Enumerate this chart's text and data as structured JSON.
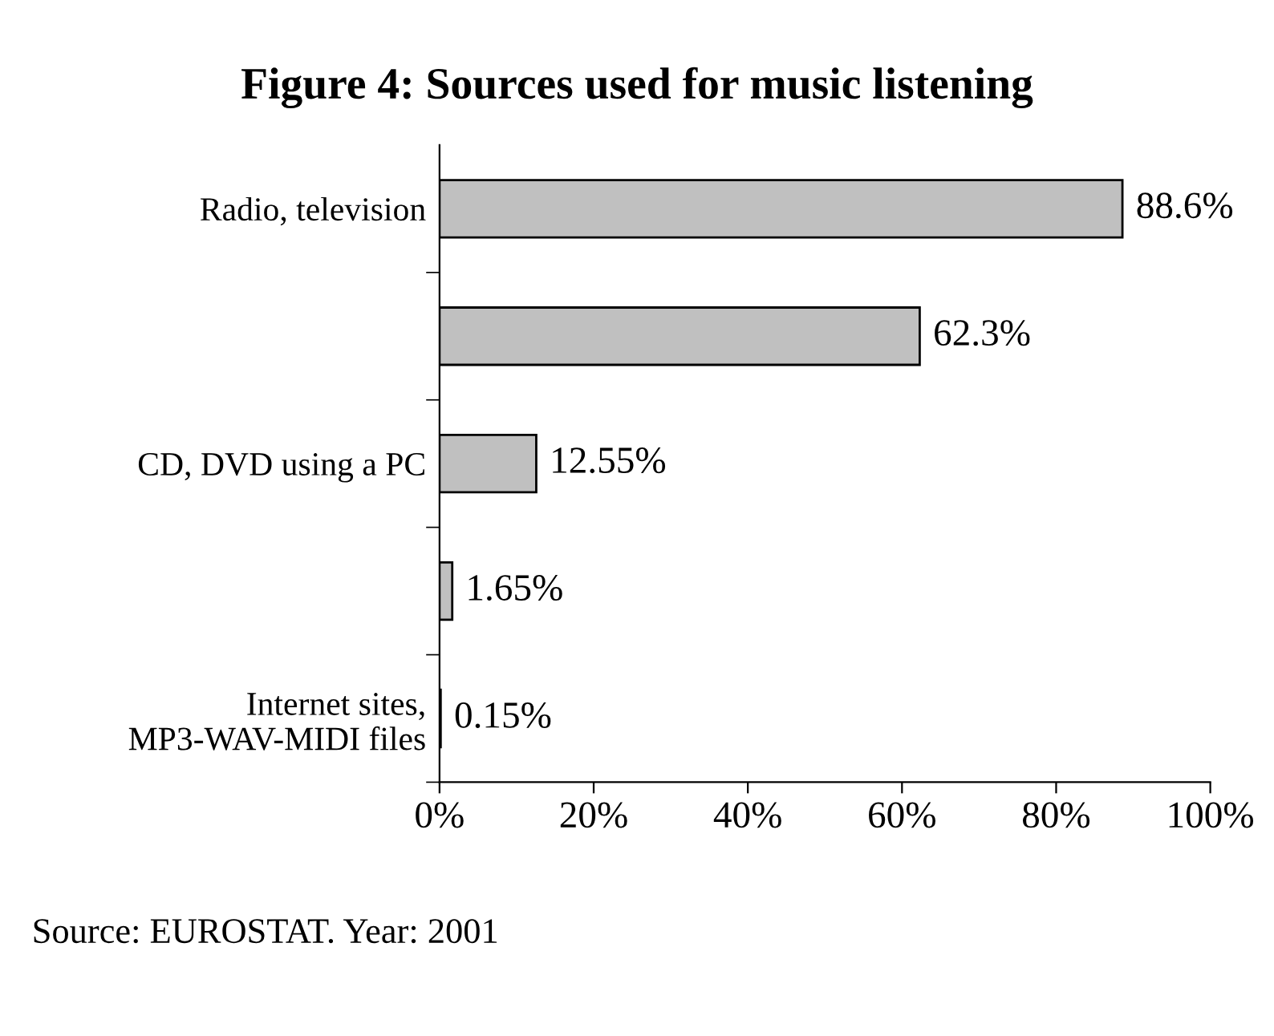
{
  "chart_data": {
    "type": "bar",
    "orientation": "horizontal",
    "title": "Figure 4: Sources used for music listening",
    "categories": [
      "Radio, television",
      null,
      "CD, DVD using a PC",
      null,
      "Internet sites,\nMP3-WAV-MIDI files"
    ],
    "values": [
      88.6,
      62.3,
      12.55,
      1.65,
      0.15
    ],
    "value_labels": [
      "88.6%",
      "62.3%",
      "12.55%",
      "1.65%",
      "0.15%"
    ],
    "color": "#c0c0c0",
    "xlim": [
      0,
      100
    ],
    "xticks": [
      {
        "value": 0,
        "label": "0%"
      },
      {
        "value": 20,
        "label": "20%"
      },
      {
        "value": 40,
        "label": "40%"
      },
      {
        "value": 60,
        "label": "60%"
      },
      {
        "value": 80,
        "label": "80%"
      },
      {
        "value": 100,
        "label": "100%"
      }
    ],
    "grid": false,
    "legend": false,
    "annotations": [
      "Source: EUROSTAT. Year: 2001"
    ]
  }
}
